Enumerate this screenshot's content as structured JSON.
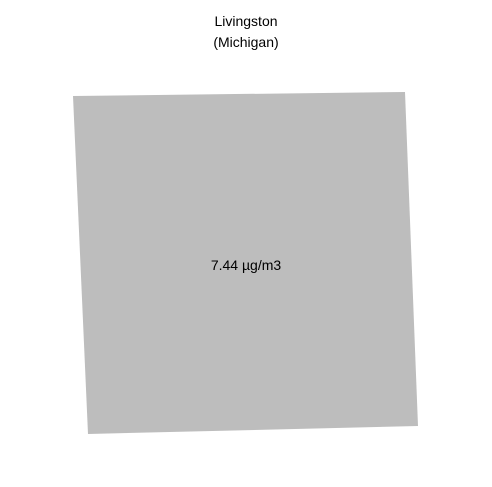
{
  "map": {
    "county": "Livingston",
    "state": "(Michigan)",
    "value_label": "7.44 µg/m3",
    "fill_color": "#bdbdbd"
  }
}
